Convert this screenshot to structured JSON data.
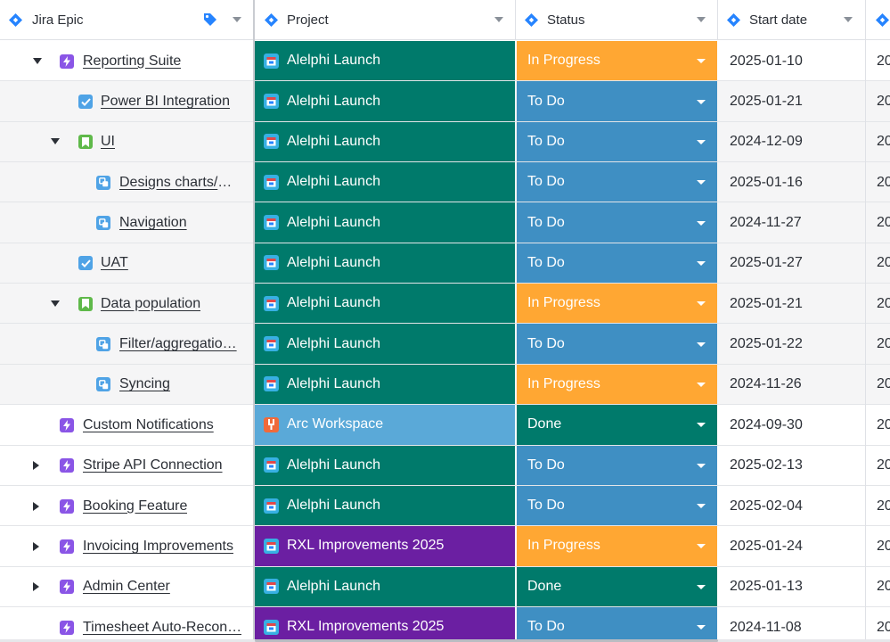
{
  "header": {
    "columns": [
      {
        "label": "Jira Epic",
        "icon": "jira-icon",
        "extra_icon": "tag-icon"
      },
      {
        "label": "Project",
        "icon": "jira-icon"
      },
      {
        "label": "Status",
        "icon": "jira-icon"
      },
      {
        "label": "Start date",
        "icon": "jira-icon"
      }
    ]
  },
  "colors": {
    "teal": "#007a6b",
    "light_blue": "#5aa9d8",
    "purple": "#6b1fa2",
    "in_progress": "#ffa733",
    "to_do": "#3f8fc3",
    "done": "#007a6b",
    "jira_blue": "#2684ff"
  },
  "rows": [
    {
      "name": "Reporting Suite",
      "type": "epic",
      "level": 0,
      "toggle": "down",
      "project": "Alelphi Launch",
      "project_color": "#007a6b",
      "project_icon": "calendar-icon",
      "status": "In Progress",
      "status_color": "#ffa733",
      "start": "2025-01-10",
      "next": "20",
      "shaded": false
    },
    {
      "name": "Power BI Integration",
      "type": "task",
      "level": 1,
      "toggle": "none",
      "project": "Alelphi Launch",
      "project_color": "#007a6b",
      "project_icon": "calendar-icon",
      "status": "To Do",
      "status_color": "#3f8fc3",
      "start": "2025-01-21",
      "next": "20",
      "shaded": true
    },
    {
      "name": "UI",
      "type": "story",
      "level": 1,
      "toggle": "down",
      "project": "Alelphi Launch",
      "project_color": "#007a6b",
      "project_icon": "calendar-icon",
      "status": "To Do",
      "status_color": "#3f8fc3",
      "start": "2024-12-09",
      "next": "20",
      "shaded": true
    },
    {
      "name": "Designs charts/m…",
      "type": "subtask",
      "level": 2,
      "toggle": "none",
      "project": "Alelphi Launch",
      "project_color": "#007a6b",
      "project_icon": "calendar-icon",
      "status": "To Do",
      "status_color": "#3f8fc3",
      "start": "2025-01-16",
      "next": "20",
      "shaded": true
    },
    {
      "name": "Navigation",
      "type": "subtask",
      "level": 2,
      "toggle": "none",
      "project": "Alelphi Launch",
      "project_color": "#007a6b",
      "project_icon": "calendar-icon",
      "status": "To Do",
      "status_color": "#3f8fc3",
      "start": "2024-11-27",
      "next": "20",
      "shaded": true
    },
    {
      "name": "UAT",
      "type": "task",
      "level": 1,
      "toggle": "none",
      "project": "Alelphi Launch",
      "project_color": "#007a6b",
      "project_icon": "calendar-icon",
      "status": "To Do",
      "status_color": "#3f8fc3",
      "start": "2025-01-27",
      "next": "20",
      "shaded": true
    },
    {
      "name": "Data population",
      "type": "story",
      "level": 1,
      "toggle": "down",
      "project": "Alelphi Launch",
      "project_color": "#007a6b",
      "project_icon": "calendar-icon",
      "status": "In Progress",
      "status_color": "#ffa733",
      "start": "2025-01-21",
      "next": "20",
      "shaded": true
    },
    {
      "name": "Filter/aggregatio…",
      "type": "subtask",
      "level": 2,
      "toggle": "none",
      "project": "Alelphi Launch",
      "project_color": "#007a6b",
      "project_icon": "calendar-icon",
      "status": "To Do",
      "status_color": "#3f8fc3",
      "start": "2025-01-22",
      "next": "20",
      "shaded": true
    },
    {
      "name": "Syncing",
      "type": "subtask",
      "level": 2,
      "toggle": "none",
      "project": "Alelphi Launch",
      "project_color": "#007a6b",
      "project_icon": "calendar-icon",
      "status": "In Progress",
      "status_color": "#ffa733",
      "start": "2024-11-26",
      "next": "20",
      "shaded": true
    },
    {
      "name": "Custom Notifications",
      "type": "epic",
      "level": 0,
      "toggle": "none",
      "project": "Arc Workspace",
      "project_color": "#5aa9d8",
      "project_icon": "wrench-icon",
      "status": "Done",
      "status_color": "#007a6b",
      "start": "2024-09-30",
      "next": "20",
      "shaded": false
    },
    {
      "name": "Stripe API Connection",
      "type": "epic",
      "level": 0,
      "toggle": "right",
      "project": "Alelphi Launch",
      "project_color": "#007a6b",
      "project_icon": "calendar-icon",
      "status": "To Do",
      "status_color": "#3f8fc3",
      "start": "2025-02-13",
      "next": "20",
      "shaded": false
    },
    {
      "name": "Booking Feature",
      "type": "epic",
      "level": 0,
      "toggle": "right",
      "project": "Alelphi Launch",
      "project_color": "#007a6b",
      "project_icon": "calendar-icon",
      "status": "To Do",
      "status_color": "#3f8fc3",
      "start": "2025-02-04",
      "next": "20",
      "shaded": false
    },
    {
      "name": "Invoicing Improvements",
      "type": "epic",
      "level": 0,
      "toggle": "right",
      "project": "RXL Improvements 2025",
      "project_color": "#6b1fa2",
      "project_icon": "calendar-icon",
      "status": "In Progress",
      "status_color": "#ffa733",
      "start": "2025-01-24",
      "next": "20",
      "shaded": false
    },
    {
      "name": "Admin Center",
      "type": "epic",
      "level": 0,
      "toggle": "right",
      "project": "Alelphi Launch",
      "project_color": "#007a6b",
      "project_icon": "calendar-icon",
      "status": "Done",
      "status_color": "#007a6b",
      "start": "2025-01-13",
      "next": "20",
      "shaded": false
    },
    {
      "name": "Timesheet Auto-Recon…",
      "type": "epic",
      "level": 0,
      "toggle": "none",
      "project": "RXL Improvements 2025",
      "project_color": "#6b1fa2",
      "project_icon": "calendar-icon",
      "status": "To Do",
      "status_color": "#3f8fc3",
      "start": "2024-11-08",
      "next": "20",
      "shaded": false
    }
  ]
}
